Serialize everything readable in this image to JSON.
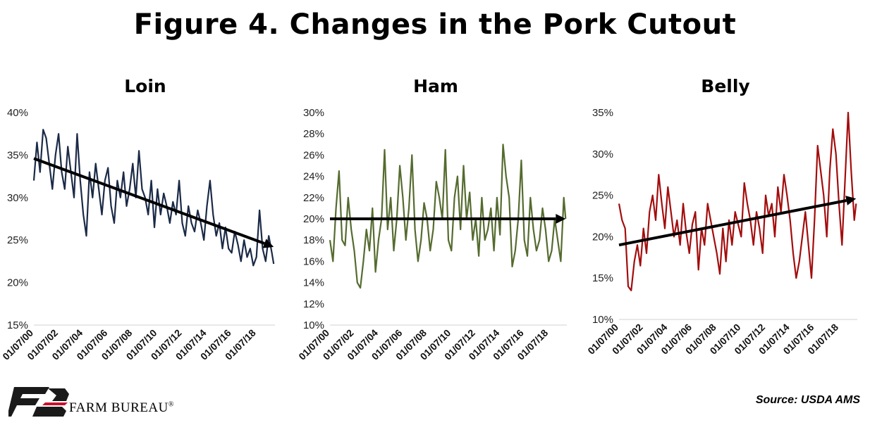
{
  "figure": {
    "title": "Figure 4. Changes in the Pork Cutout",
    "source": "Source: USDA AMS",
    "logo_text": "FARM BUREAU",
    "logo_mark": "®"
  },
  "chart_data": [
    {
      "type": "line",
      "title": "Loin",
      "color": "#1b2a47",
      "ylim": [
        15,
        40
      ],
      "yticks": [
        15,
        20,
        25,
        30,
        35,
        40
      ],
      "ytick_labels": [
        "15%",
        "20%",
        "25%",
        "30%",
        "35%",
        "40%"
      ],
      "xlim": [
        2000.0,
        2019.5
      ],
      "xticks": [
        "01/07/00",
        "01/07/02",
        "01/07/04",
        "01/07/06",
        "01/07/08",
        "01/07/10",
        "01/07/12",
        "01/07/14",
        "01/07/16",
        "01/07/18"
      ],
      "trend": {
        "start": [
          2000.0,
          34.6
        ],
        "end": [
          2019.4,
          24.2
        ]
      },
      "series": [
        {
          "x": [
            2000.0,
            2000.25,
            2000.5,
            2000.75,
            2001.0,
            2001.25,
            2001.5,
            2001.75,
            2002.0,
            2002.25,
            2002.5,
            2002.75,
            2003.0,
            2003.25,
            2003.5,
            2003.75,
            2004.0,
            2004.25,
            2004.5,
            2004.75,
            2005.0,
            2005.25,
            2005.5,
            2005.75,
            2006.0,
            2006.25,
            2006.5,
            2006.75,
            2007.0,
            2007.25,
            2007.5,
            2007.75,
            2008.0,
            2008.25,
            2008.5,
            2008.75,
            2009.0,
            2009.25,
            2009.5,
            2009.75,
            2010.0,
            2010.25,
            2010.5,
            2010.75,
            2011.0,
            2011.25,
            2011.5,
            2011.75,
            2012.0,
            2012.25,
            2012.5,
            2012.75,
            2013.0,
            2013.25,
            2013.5,
            2013.75,
            2014.0,
            2014.25,
            2014.5,
            2014.75,
            2015.0,
            2015.25,
            2015.5,
            2015.75,
            2016.0,
            2016.25,
            2016.5,
            2016.75,
            2017.0,
            2017.25,
            2017.5,
            2017.75,
            2018.0,
            2018.25,
            2018.5,
            2018.75,
            2019.0,
            2019.25,
            2019.4
          ],
          "y": [
            32,
            36.5,
            33,
            38,
            37,
            34,
            31,
            35,
            37.5,
            33,
            31,
            36,
            33,
            30,
            37.5,
            32,
            28,
            25.5,
            33,
            30,
            34,
            31,
            28,
            32,
            33.5,
            29,
            27,
            32,
            30,
            33,
            29,
            31,
            34,
            30,
            35.5,
            31,
            30,
            28,
            32,
            26.5,
            31,
            28,
            30.5,
            29,
            27,
            29.5,
            28,
            32,
            27,
            25.5,
            29,
            27,
            26,
            28.5,
            27,
            25,
            29,
            32,
            28,
            25.5,
            27,
            24,
            26.5,
            24,
            23.5,
            26,
            24.5,
            22.5,
            25,
            23,
            24,
            22,
            23,
            28.5,
            24,
            22.5,
            25.5,
            23.5,
            22.2
          ]
        }
      ]
    },
    {
      "type": "line",
      "title": "Ham",
      "color": "#556b2f",
      "ylim": [
        10,
        30
      ],
      "yticks": [
        10,
        12,
        14,
        16,
        18,
        20,
        22,
        24,
        26,
        28,
        30
      ],
      "ytick_labels": [
        "10%",
        "12%",
        "14%",
        "16%",
        "18%",
        "20%",
        "22%",
        "24%",
        "26%",
        "28%",
        "30%"
      ],
      "xlim": [
        2000.0,
        2019.5
      ],
      "xticks": [
        "01/07/00",
        "01/07/02",
        "01/07/04",
        "01/07/06",
        "01/07/08",
        "01/07/10",
        "01/07/12",
        "01/07/14",
        "01/07/16",
        "01/07/18"
      ],
      "trend": {
        "start": [
          2000.0,
          20.0
        ],
        "end": [
          2019.4,
          20.0
        ]
      },
      "series": [
        {
          "x": [
            2000.0,
            2000.25,
            2000.5,
            2000.75,
            2001.0,
            2001.25,
            2001.5,
            2001.75,
            2002.0,
            2002.25,
            2002.5,
            2002.75,
            2003.0,
            2003.25,
            2003.5,
            2003.75,
            2004.0,
            2004.25,
            2004.5,
            2004.75,
            2005.0,
            2005.25,
            2005.5,
            2005.75,
            2006.0,
            2006.25,
            2006.5,
            2006.75,
            2007.0,
            2007.25,
            2007.5,
            2007.75,
            2008.0,
            2008.25,
            2008.5,
            2008.75,
            2009.0,
            2009.25,
            2009.5,
            2009.75,
            2010.0,
            2010.25,
            2010.5,
            2010.75,
            2011.0,
            2011.25,
            2011.5,
            2011.75,
            2012.0,
            2012.25,
            2012.5,
            2012.75,
            2013.0,
            2013.25,
            2013.5,
            2013.75,
            2014.0,
            2014.25,
            2014.5,
            2014.75,
            2015.0,
            2015.25,
            2015.5,
            2015.75,
            2016.0,
            2016.25,
            2016.5,
            2016.75,
            2017.0,
            2017.25,
            2017.5,
            2017.75,
            2018.0,
            2018.25,
            2018.5,
            2018.75,
            2019.0,
            2019.25,
            2019.4
          ],
          "y": [
            18,
            16,
            21,
            24.5,
            18,
            17.5,
            22,
            19,
            17,
            14,
            13.5,
            16,
            19,
            17,
            21,
            15,
            18,
            20,
            26.5,
            19,
            22,
            17,
            20,
            25,
            22,
            18,
            21,
            26,
            19,
            16,
            18,
            21.5,
            20,
            17,
            19,
            23.5,
            22,
            20,
            26.5,
            18,
            17,
            22,
            24,
            19,
            25,
            20,
            22.5,
            18,
            20,
            16.5,
            22,
            18,
            19,
            21,
            17,
            22,
            18.5,
            27,
            24,
            22,
            15.5,
            17,
            20,
            25.5,
            18,
            16.5,
            22,
            19,
            17,
            18,
            21,
            19,
            16,
            17,
            20,
            18,
            16,
            22,
            20
          ]
        }
      ]
    },
    {
      "type": "line",
      "title": "Belly",
      "color": "#a30d0d",
      "ylim": [
        10,
        35
      ],
      "yticks": [
        10,
        15,
        20,
        25,
        30,
        35
      ],
      "ytick_labels": [
        "10%",
        "15%",
        "20%",
        "25%",
        "30%",
        "35%"
      ],
      "xlim": [
        2000.0,
        2019.5
      ],
      "xticks": [
        "01/07/00",
        "01/07/02",
        "01/07/04",
        "01/07/06",
        "01/07/08",
        "01/07/10",
        "01/07/12",
        "01/07/14",
        "01/07/16",
        "01/07/18"
      ],
      "trend": {
        "start": [
          2000.0,
          19.0
        ],
        "end": [
          2019.4,
          24.6
        ]
      },
      "series": [
        {
          "x": [
            2000.0,
            2000.25,
            2000.5,
            2000.75,
            2001.0,
            2001.25,
            2001.5,
            2001.75,
            2002.0,
            2002.25,
            2002.5,
            2002.75,
            2003.0,
            2003.25,
            2003.5,
            2003.75,
            2004.0,
            2004.25,
            2004.5,
            2004.75,
            2005.0,
            2005.25,
            2005.5,
            2005.75,
            2006.0,
            2006.25,
            2006.5,
            2006.75,
            2007.0,
            2007.25,
            2007.5,
            2007.75,
            2008.0,
            2008.25,
            2008.5,
            2008.75,
            2009.0,
            2009.25,
            2009.5,
            2009.75,
            2010.0,
            2010.25,
            2010.5,
            2010.75,
            2011.0,
            2011.25,
            2011.5,
            2011.75,
            2012.0,
            2012.25,
            2012.5,
            2012.75,
            2013.0,
            2013.25,
            2013.5,
            2013.75,
            2014.0,
            2014.25,
            2014.5,
            2014.75,
            2015.0,
            2015.25,
            2015.5,
            2015.75,
            2016.0,
            2016.25,
            2016.5,
            2016.75,
            2017.0,
            2017.25,
            2017.5,
            2017.75,
            2018.0,
            2018.25,
            2018.5,
            2018.75,
            2019.0,
            2019.25,
            2019.4
          ],
          "y": [
            24,
            22,
            21,
            14,
            13.5,
            17,
            19,
            16.5,
            21,
            18,
            23,
            25,
            22,
            27.5,
            24,
            21,
            26,
            23,
            20,
            22,
            19,
            24,
            20.5,
            18,
            21.5,
            23,
            16,
            21,
            19,
            24,
            22,
            20,
            18,
            15.5,
            21,
            17,
            22,
            19,
            23,
            21.5,
            20,
            26.5,
            24,
            22,
            19,
            23,
            21,
            18,
            25,
            22.5,
            24,
            20,
            26,
            23,
            27.5,
            25,
            22,
            18,
            15,
            17,
            20,
            23,
            19,
            15,
            22,
            31,
            28,
            25,
            20,
            28,
            33,
            30,
            24,
            19,
            27,
            35,
            28,
            22,
            24
          ]
        }
      ]
    }
  ]
}
